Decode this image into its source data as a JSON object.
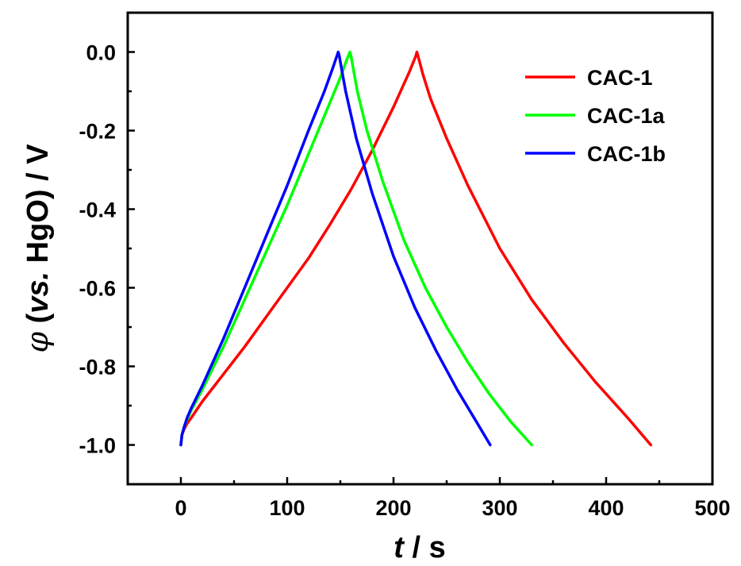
{
  "chart_data": {
    "type": "line",
    "xlabel": {
      "var": "t",
      "sep": " / ",
      "unit": "s"
    },
    "ylabel": {
      "var": "φ",
      "pre": " (",
      "vs": "vs.",
      "post": " HgO) / V"
    },
    "xlim": [
      -50,
      500
    ],
    "ylim": [
      -1.1,
      0.1
    ],
    "xticks": [
      0,
      100,
      200,
      300,
      400,
      500
    ],
    "xtick_labels": [
      "0",
      "100",
      "200",
      "300",
      "400",
      "500"
    ],
    "yticks": [
      0.0,
      -0.2,
      -0.4,
      -0.6,
      -0.8,
      -1.0
    ],
    "ytick_labels": [
      "0.0",
      "-0.2",
      "-0.4",
      "-0.6",
      "-0.8",
      "-1.0"
    ],
    "grid": false,
    "legend_position": "top-right",
    "series": [
      {
        "name": "CAC-1",
        "color": "#ff0000",
        "x": [
          0,
          1,
          3,
          6,
          10,
          20,
          40,
          60,
          80,
          100,
          120,
          140,
          160,
          180,
          200,
          215,
          221,
          222,
          224,
          228,
          235,
          250,
          270,
          300,
          330,
          360,
          390,
          420,
          442
        ],
        "y": [
          -1.0,
          -0.975,
          -0.96,
          -0.945,
          -0.93,
          -0.89,
          -0.82,
          -0.75,
          -0.675,
          -0.6,
          -0.525,
          -0.44,
          -0.35,
          -0.25,
          -0.14,
          -0.05,
          -0.01,
          0.0,
          -0.02,
          -0.06,
          -0.12,
          -0.22,
          -0.34,
          -0.5,
          -0.63,
          -0.74,
          -0.84,
          -0.93,
          -1.0
        ]
      },
      {
        "name": "CAC-1a",
        "color": "#00ff00",
        "x": [
          0,
          1,
          3,
          6,
          10,
          20,
          40,
          60,
          80,
          100,
          120,
          140,
          150,
          156,
          159,
          160,
          162,
          166,
          175,
          190,
          210,
          230,
          250,
          270,
          290,
          310,
          330
        ],
        "y": [
          -1.0,
          -0.975,
          -0.955,
          -0.935,
          -0.91,
          -0.86,
          -0.75,
          -0.63,
          -0.51,
          -0.39,
          -0.26,
          -0.13,
          -0.065,
          -0.02,
          0.0,
          -0.01,
          -0.04,
          -0.1,
          -0.2,
          -0.33,
          -0.48,
          -0.6,
          -0.7,
          -0.79,
          -0.87,
          -0.94,
          -1.0
        ]
      },
      {
        "name": "CAC-1b",
        "color": "#0000ff",
        "x": [
          0,
          1,
          3,
          6,
          10,
          20,
          40,
          60,
          80,
          100,
          120,
          135,
          143,
          148,
          149,
          151,
          155,
          165,
          180,
          200,
          220,
          240,
          260,
          280,
          291
        ],
        "y": [
          -1.0,
          -0.975,
          -0.955,
          -0.93,
          -0.905,
          -0.85,
          -0.73,
          -0.6,
          -0.47,
          -0.34,
          -0.2,
          -0.1,
          -0.04,
          0.0,
          -0.01,
          -0.04,
          -0.1,
          -0.22,
          -0.36,
          -0.52,
          -0.65,
          -0.76,
          -0.86,
          -0.95,
          -1.0
        ]
      }
    ]
  }
}
